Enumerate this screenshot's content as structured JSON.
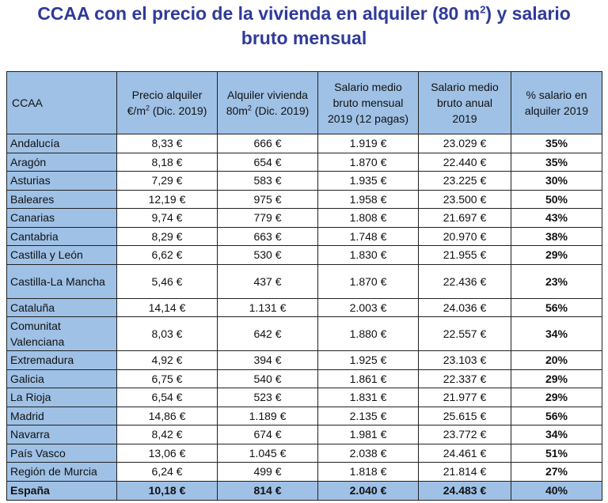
{
  "title": {
    "line1_pre": "CCAA con el precio de la vivienda en alquiler (80 m",
    "line1_sup": "2",
    "line1_post": ") y salario",
    "line2": "bruto mensual"
  },
  "table": {
    "headers": {
      "ccaa": "CCAA",
      "precio_l1": "Precio alquiler",
      "precio_l2_pre": "€/m",
      "precio_sup": "2",
      "precio_l2_post": " (Dic. 2019)",
      "alquiler_l1": "Alquiler vivienda",
      "alquiler_l2_pre": "80m",
      "alquiler_sup": "2",
      "alquiler_l2_post": " (Dic. 2019)",
      "salario_mensual_l1": "Salario medio",
      "salario_mensual_l2": "bruto mensual",
      "salario_mensual_l3": "2019 (12 pagas)",
      "salario_anual_l1": "Salario medio",
      "salario_anual_l2": "bruto anual",
      "salario_anual_l3": "2019",
      "pct_l1": "% salario en",
      "pct_l2": "alquiler 2019"
    },
    "rows": [
      {
        "name": "Andalucía",
        "precio": "8,33 €",
        "alquiler": "666 €",
        "salario_mensual": "1.919 €",
        "salario_anual": "23.029 €",
        "pct": "35%"
      },
      {
        "name": "Aragón",
        "precio": "8,18 €",
        "alquiler": "654 €",
        "salario_mensual": "1.870 €",
        "salario_anual": "22.440 €",
        "pct": "35%"
      },
      {
        "name": "Asturias",
        "precio": "7,29 €",
        "alquiler": "583 €",
        "salario_mensual": "1.935 €",
        "salario_anual": "23.225 €",
        "pct": "30%"
      },
      {
        "name": "Baleares",
        "precio": "12,19 €",
        "alquiler": "975 €",
        "salario_mensual": "1.958 €",
        "salario_anual": "23.500 €",
        "pct": "50%"
      },
      {
        "name": "Canarias",
        "precio": "9,74 €",
        "alquiler": "779 €",
        "salario_mensual": "1.808 €",
        "salario_anual": "21.697 €",
        "pct": "43%"
      },
      {
        "name": "Cantabria",
        "precio": "8,29 €",
        "alquiler": "663 €",
        "salario_mensual": "1.748 €",
        "salario_anual": "20.970 €",
        "pct": "38%"
      },
      {
        "name": "Castilla y León",
        "precio": "6,62 €",
        "alquiler": "530 €",
        "salario_mensual": "1.830 €",
        "salario_anual": "21.955 €",
        "pct": "29%"
      },
      {
        "name": "Castilla-La Mancha",
        "precio": "5,46 €",
        "alquiler": "437 €",
        "salario_mensual": "1.870 €",
        "salario_anual": "22.436 €",
        "pct": "23%",
        "tall": true
      },
      {
        "name": "Cataluña",
        "precio": "14,14 €",
        "alquiler": "1.131 €",
        "salario_mensual": "2.003 €",
        "salario_anual": "24.036 €",
        "pct": "56%"
      },
      {
        "name": "Comunitat Valenciana",
        "precio": "8,03 €",
        "alquiler": "642 €",
        "salario_mensual": "1.880 €",
        "salario_anual": "22.557 €",
        "pct": "34%",
        "tall": true
      },
      {
        "name": "Extremadura",
        "precio": "4,92 €",
        "alquiler": "394 €",
        "salario_mensual": "1.925 €",
        "salario_anual": "23.103 €",
        "pct": "20%"
      },
      {
        "name": "Galicia",
        "precio": "6,75 €",
        "alquiler": "540 €",
        "salario_mensual": "1.861 €",
        "salario_anual": "22.337 €",
        "pct": "29%"
      },
      {
        "name": "La Rioja",
        "precio": "6,54 €",
        "alquiler": "523 €",
        "salario_mensual": "1.831 €",
        "salario_anual": "21.977 €",
        "pct": "29%"
      },
      {
        "name": "Madrid",
        "precio": "14,86 €",
        "alquiler": "1.189 €",
        "salario_mensual": "2.135 €",
        "salario_anual": "25.615 €",
        "pct": "56%"
      },
      {
        "name": "Navarra",
        "precio": "8,42 €",
        "alquiler": "674 €",
        "salario_mensual": "1.981 €",
        "salario_anual": "23.772 €",
        "pct": "34%"
      },
      {
        "name": "País Vasco",
        "precio": "13,06 €",
        "alquiler": "1.045 €",
        "salario_mensual": "2.038 €",
        "salario_anual": "24.461 €",
        "pct": "51%"
      },
      {
        "name": "Región de Murcia",
        "precio": "6,24 €",
        "alquiler": "499 €",
        "salario_mensual": "1.818 €",
        "salario_anual": "21.814 €",
        "pct": "27%"
      }
    ],
    "total": {
      "name": "España",
      "precio": "10,18 €",
      "alquiler": "814 €",
      "salario_mensual": "2.040 €",
      "salario_anual": "24.483 €",
      "pct": "40%"
    }
  }
}
